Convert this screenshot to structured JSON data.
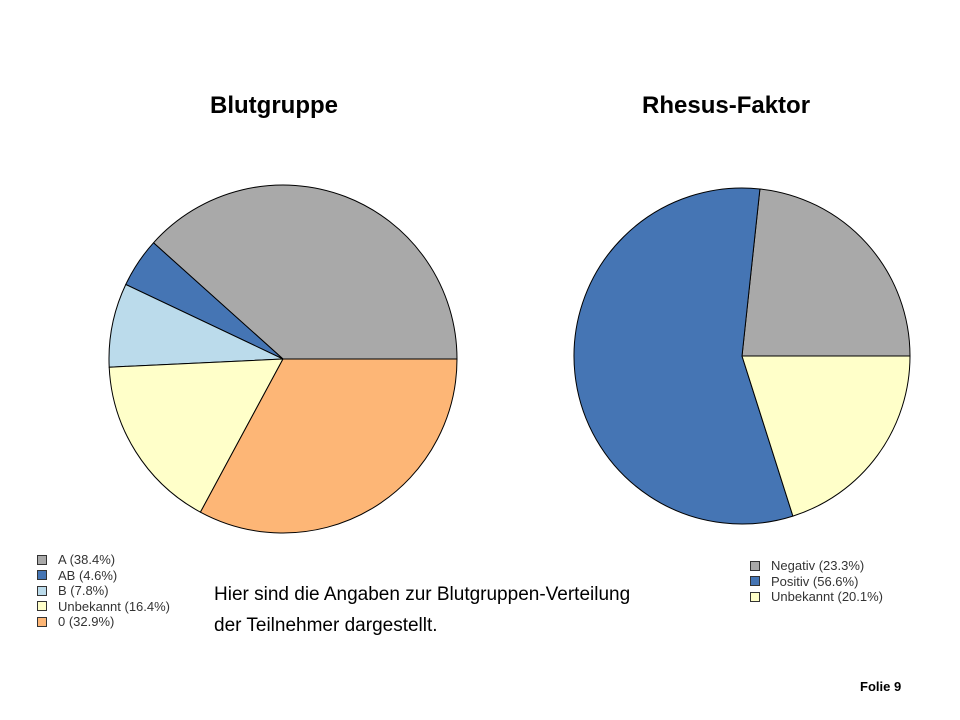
{
  "slide": {
    "number_label": "Folie 9",
    "caption_line1": "Hier sind die Angaben zur Blutgruppen-Verteilung",
    "caption_line2": "der Teilnehmer dargestellt."
  },
  "chart_data": [
    {
      "type": "pie",
      "title": "Blutgruppe",
      "legend_position": "bottom-left",
      "slices": [
        {
          "label": "A (38.4%)",
          "value": 38.4,
          "color": "#A9A9A9"
        },
        {
          "label": "AB (4.6%)",
          "value": 4.6,
          "color": "#4575B4"
        },
        {
          "label": "B (7.8%)",
          "value": 7.8,
          "color": "#BBDBEB"
        },
        {
          "label": "Unbekannt (16.4%)",
          "value": 16.4,
          "color": "#FFFFC9"
        },
        {
          "label": "0 (32.9%)",
          "value": 32.9,
          "color": "#FDB676"
        }
      ]
    },
    {
      "type": "pie",
      "title": "Rhesus-Faktor",
      "legend_position": "bottom-right",
      "slices": [
        {
          "label": "Negativ (23.3%)",
          "value": 23.3,
          "color": "#A9A9A9"
        },
        {
          "label": "Positiv (56.6%)",
          "value": 56.6,
          "color": "#4575B4"
        },
        {
          "label": "Unbekannt (20.1%)",
          "value": 20.1,
          "color": "#FFFFC9"
        }
      ]
    }
  ]
}
